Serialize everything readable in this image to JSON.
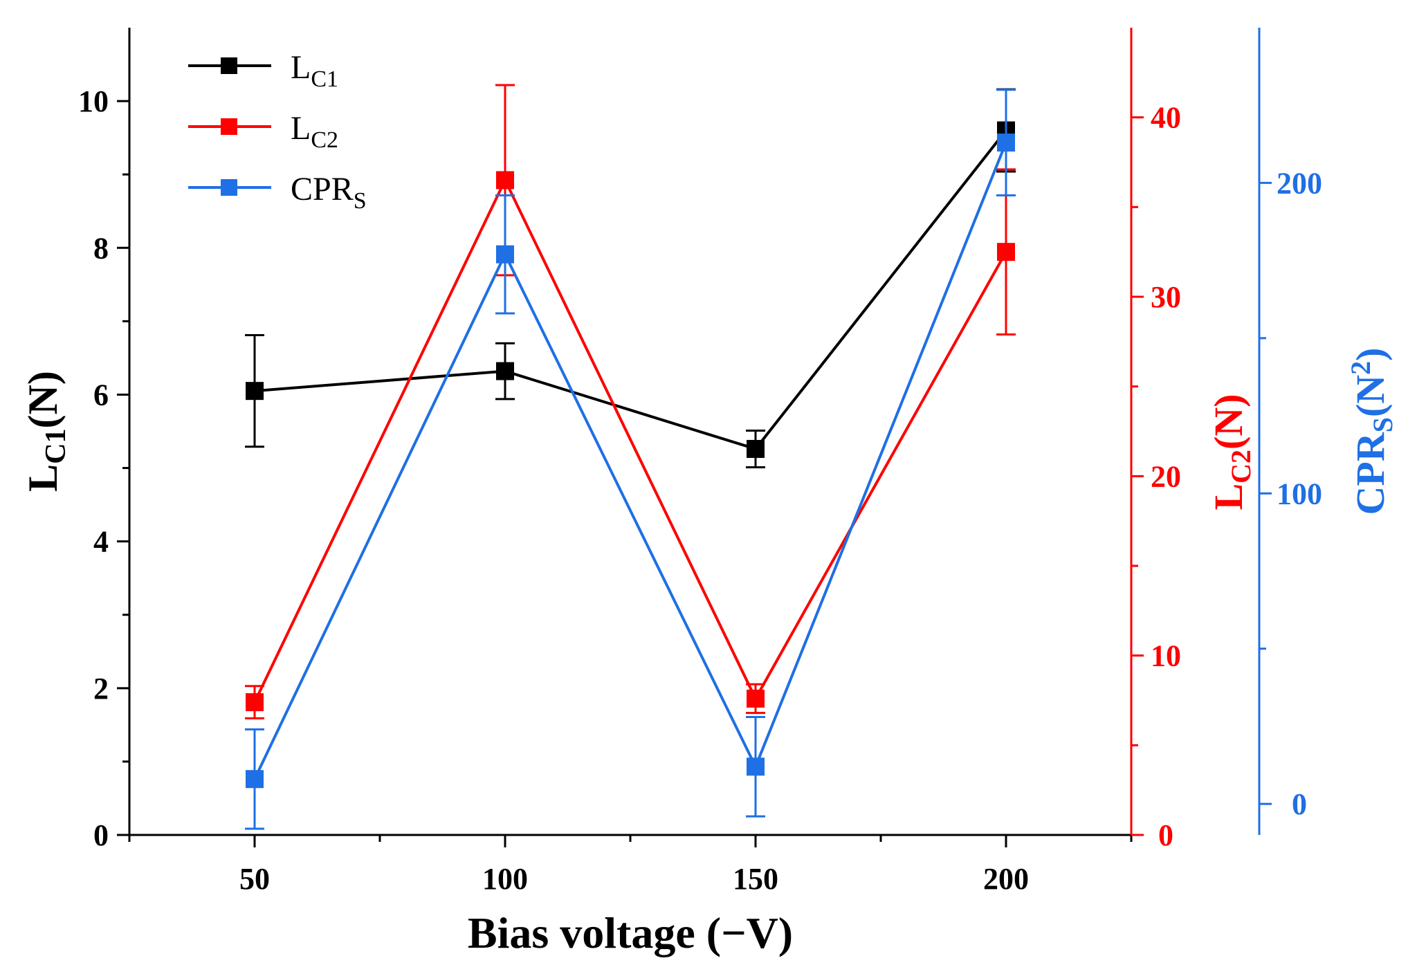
{
  "chart_data": {
    "type": "line",
    "title": "",
    "xlabel": "Bias voltage (−V)",
    "x": [
      50,
      100,
      150,
      200
    ],
    "xlim": [
      25,
      225
    ],
    "xticks": [
      "50",
      "100",
      "150",
      "200"
    ],
    "axes": {
      "left": {
        "label_main": "L",
        "label_sub": "C1",
        "label_unit": "(N)",
        "ylim": [
          0,
          11
        ],
        "ticks": [
          "0",
          "2",
          "4",
          "6",
          "8",
          "10"
        ],
        "tick_values": [
          0,
          2,
          4,
          6,
          8,
          10
        ],
        "color": "#000000"
      },
      "right1": {
        "label_main": "L",
        "label_sub": "C2",
        "label_unit": "(N)",
        "ylim": [
          0,
          45
        ],
        "ticks": [
          "0",
          "10",
          "20",
          "30",
          "40"
        ],
        "tick_values": [
          0,
          10,
          20,
          30,
          40
        ],
        "color": "#ff0000"
      },
      "right2": {
        "label_main": "CPR",
        "label_sub": "S",
        "label_unit_open": "(N",
        "label_sup": "2",
        "label_unit_close": ")",
        "ylim": [
          -10,
          250
        ],
        "ticks": [
          "0",
          "100",
          "200"
        ],
        "tick_values": [
          0,
          100,
          200
        ],
        "color": "#1f6fe5"
      }
    },
    "series": [
      {
        "name_main": "L",
        "name_sub": "C1",
        "axis": "left",
        "color": "#000000",
        "values": [
          6.05,
          6.32,
          5.26,
          9.6
        ],
        "errors": [
          0.76,
          0.38,
          0.25,
          0.56
        ]
      },
      {
        "name_main": "L",
        "name_sub": "C2",
        "axis": "right1",
        "color": "#ff0000",
        "values": [
          7.4,
          36.5,
          7.6,
          32.5
        ],
        "errors": [
          0.9,
          5.3,
          0.8,
          4.6
        ]
      },
      {
        "name_main": "CPR",
        "name_sub": "S",
        "axis": "right2",
        "color": "#1f6fe5",
        "values": [
          8,
          177,
          12,
          213
        ],
        "errors": [
          16,
          19,
          16,
          17
        ]
      }
    ],
    "legend": "top-left"
  }
}
